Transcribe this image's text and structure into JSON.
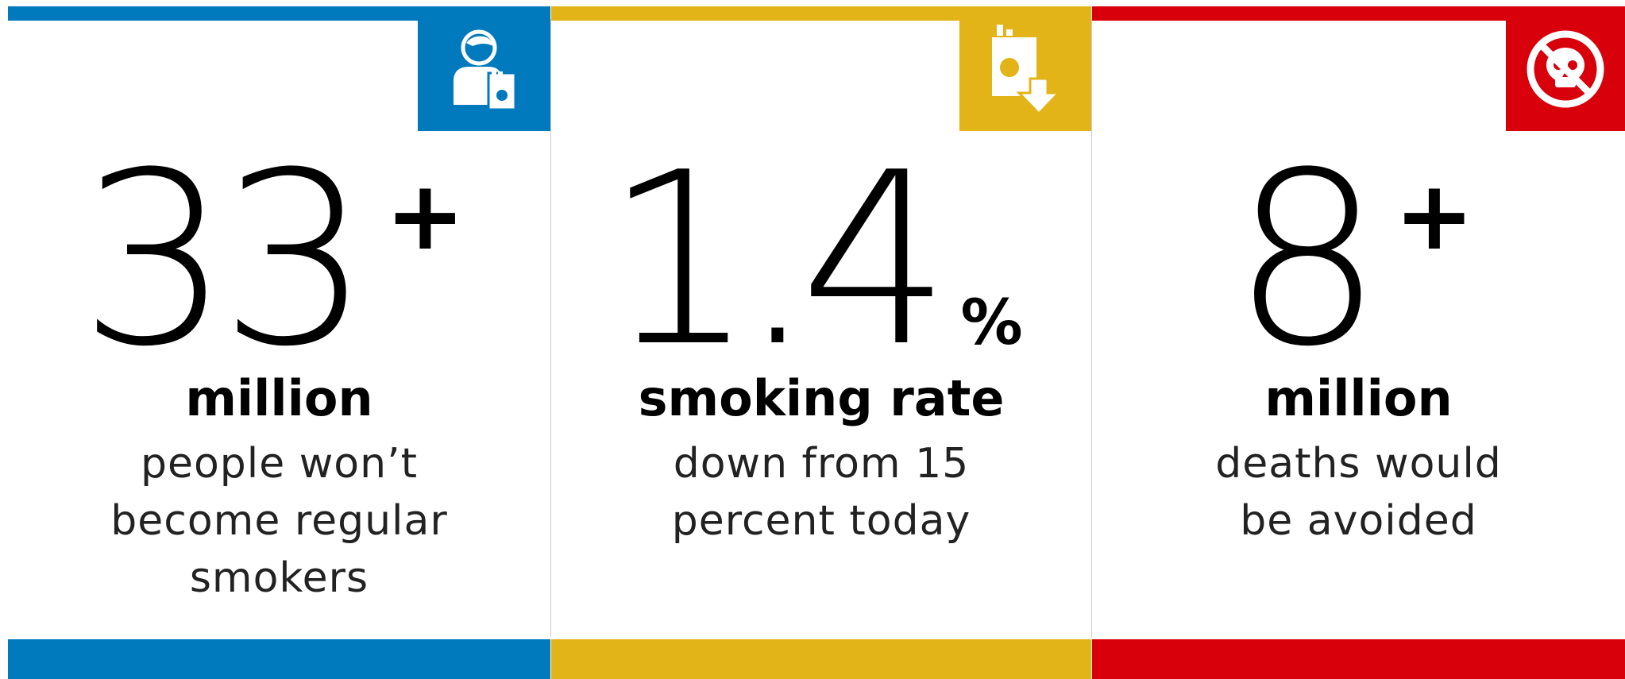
{
  "colors": {
    "blue": "#0079bd",
    "yellow": "#e3b417",
    "red": "#d7000b"
  },
  "cards": [
    {
      "icon": "person-with-cigarette-pack-icon",
      "number": "33",
      "suffix": "+",
      "label": "million",
      "desc_lines": [
        "people won’t",
        "become regular",
        "smokers"
      ]
    },
    {
      "icon": "cigarette-pack-decrease-icon",
      "number": "1.4",
      "suffix": "%",
      "label": "smoking rate",
      "desc_lines": [
        "down from 15",
        "percent today"
      ]
    },
    {
      "icon": "no-skull-icon",
      "number": "8",
      "suffix": "+",
      "label": "million",
      "desc_lines": [
        "deaths would",
        "be avoided"
      ]
    }
  ]
}
